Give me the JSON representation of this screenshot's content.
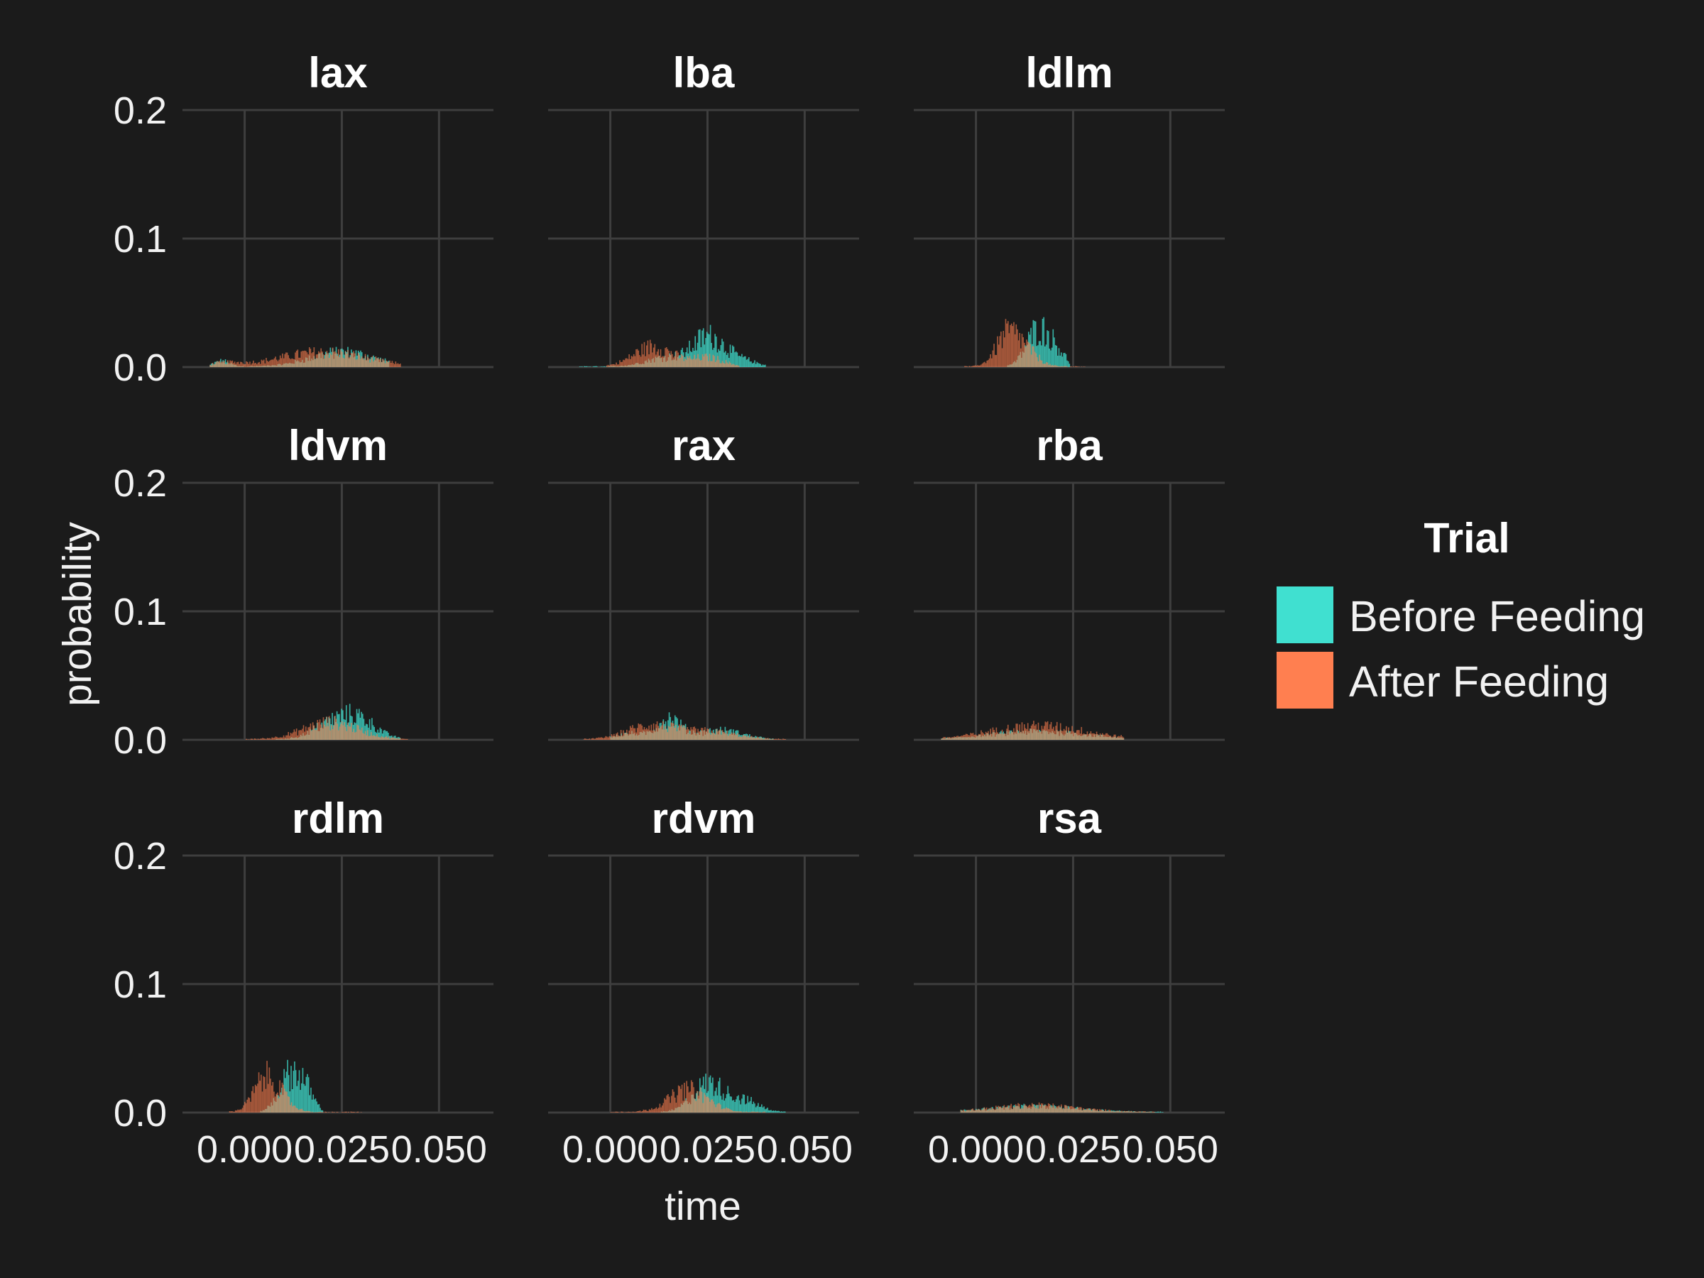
{
  "chart_data": {
    "type": "bar",
    "subtype": "faceted-histogram",
    "xlabel": "time",
    "ylabel": "probability",
    "ylim": [
      0,
      0.2
    ],
    "y_ticks": [
      0.0,
      0.1,
      0.2
    ],
    "y_tick_labels": [
      "0.0",
      "0.1",
      "0.2"
    ],
    "xlim": [
      -0.016,
      0.064
    ],
    "x_ticks": [
      0.0,
      0.025,
      0.05
    ],
    "x_tick_labels": [
      "0.000",
      "0.025",
      "0.050"
    ],
    "grid": true,
    "legend": {
      "title": "Trial",
      "position": "right",
      "entries": [
        {
          "name": "Before Feeding",
          "color": "#40e0d0"
        },
        {
          "name": "After Feeding",
          "color": "#ff7f50"
        }
      ]
    },
    "bin_width": 0.0003,
    "facets": [
      {
        "name": "lax",
        "series": {
          "Before Feeding": {
            "peaks": [
              [
                -0.006,
                0.005,
                0.002
              ],
              [
                0.025,
                0.013,
                0.008
              ]
            ],
            "range": [
              -0.009,
              0.037
            ]
          },
          "After Feeding": {
            "peaks": [
              [
                -0.005,
                0.003,
                0.004
              ],
              [
                0.02,
                0.013,
                0.011
              ]
            ],
            "range": [
              -0.009,
              0.04
            ]
          }
        }
      },
      {
        "name": "lba",
        "series": {
          "Before Feeding": {
            "peaks": [
              [
                0.025,
                0.026,
                0.004
              ],
              [
                0.014,
                0.008,
                0.005
              ],
              [
                0.033,
                0.006,
                0.004
              ]
            ],
            "range": [
              -0.008,
              0.04
            ]
          },
          "After Feeding": {
            "peaks": [
              [
                0.011,
                0.018,
                0.005
              ],
              [
                0.025,
                0.008,
                0.004
              ]
            ],
            "range": [
              -0.001,
              0.033
            ]
          }
        }
      },
      {
        "name": "ldlm",
        "series": {
          "Before Feeding": {
            "peaks": [
              [
                0.016,
                0.034,
                0.003
              ],
              [
                0.021,
                0.01,
                0.002
              ]
            ],
            "range": [
              0.008,
              0.024
            ]
          },
          "After Feeding": {
            "peaks": [
              [
                0.008,
                0.028,
                0.003
              ],
              [
                0.013,
                0.012,
                0.003
              ]
            ],
            "range": [
              -0.003,
              0.028
            ]
          }
        }
      },
      {
        "name": "ldvm",
        "series": {
          "Before Feeding": {
            "peaks": [
              [
                0.028,
                0.021,
                0.005
              ],
              [
                0.02,
                0.008,
                0.004
              ]
            ],
            "range": [
              0.008,
              0.04
            ]
          },
          "After Feeding": {
            "peaks": [
              [
                0.022,
                0.015,
                0.007
              ]
            ],
            "range": [
              0.0,
              0.042
            ]
          }
        }
      },
      {
        "name": "rax",
        "series": {
          "Before Feeding": {
            "peaks": [
              [
                0.015,
                0.018,
                0.003
              ],
              [
                0.028,
                0.008,
                0.006
              ],
              [
                0.005,
                0.005,
                0.004
              ]
            ],
            "range": [
              0.0,
              0.042
            ]
          },
          "After Feeding": {
            "peaks": [
              [
                0.01,
                0.012,
                0.006
              ],
              [
                0.025,
                0.007,
                0.007
              ]
            ],
            "range": [
              -0.007,
              0.045
            ]
          }
        }
      },
      {
        "name": "rba",
        "series": {
          "Before Feeding": {
            "peaks": [
              [
                0.016,
                0.007,
                0.012
              ]
            ],
            "range": [
              -0.009,
              0.038
            ]
          },
          "After Feeding": {
            "peaks": [
              [
                0.016,
                0.012,
                0.012
              ]
            ],
            "range": [
              -0.009,
              0.038
            ]
          }
        }
      },
      {
        "name": "rdlm",
        "series": {
          "Before Feeding": {
            "peaks": [
              [
                0.012,
                0.035,
                0.003
              ],
              [
                0.016,
                0.01,
                0.002
              ]
            ],
            "range": [
              0.004,
              0.02
            ]
          },
          "After Feeding": {
            "peaks": [
              [
                0.005,
                0.027,
                0.003
              ],
              [
                0.009,
                0.01,
                0.003
              ]
            ],
            "range": [
              -0.004,
              0.03
            ]
          }
        }
      },
      {
        "name": "rdvm",
        "series": {
          "Before Feeding": {
            "peaks": [
              [
                0.025,
                0.025,
                0.004
              ],
              [
                0.034,
                0.01,
                0.004
              ]
            ],
            "range": [
              0.013,
              0.045
            ]
          },
          "After Feeding": {
            "peaks": [
              [
                0.02,
                0.02,
                0.005
              ]
            ],
            "range": [
              0.0,
              0.04
            ]
          }
        }
      },
      {
        "name": "rsa",
        "series": {
          "Before Feeding": {
            "peaks": [
              [
                0.015,
                0.005,
                0.012
              ]
            ],
            "range": [
              -0.004,
              0.048
            ]
          },
          "After Feeding": {
            "peaks": [
              [
                0.015,
                0.006,
                0.011
              ]
            ],
            "range": [
              -0.004,
              0.046
            ]
          }
        }
      }
    ]
  }
}
